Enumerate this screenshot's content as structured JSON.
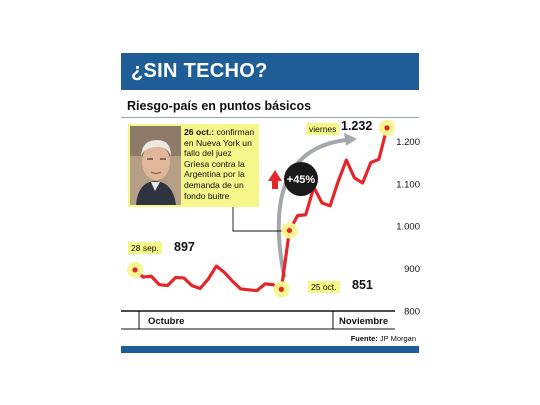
{
  "header": {
    "title": "¿SIN TECHO?"
  },
  "chart_data": {
    "type": "line",
    "title": "",
    "subtitle": "Riesgo-país en puntos básicos",
    "xlabel": "",
    "ylabel": "",
    "yticks": [
      800,
      900,
      1000,
      1100,
      1200
    ],
    "ylim": [
      800,
      1260
    ],
    "x_labels": [
      "Octubre",
      "Noviembre"
    ],
    "grid": false,
    "series": [
      {
        "color": "#e3262a",
        "values": [
          897,
          880,
          882,
          862,
          860,
          879,
          878,
          860,
          853,
          875,
          906,
          891,
          870,
          852,
          850,
          848,
          864,
          862,
          851,
          990,
          1025,
          1027,
          1092,
          1055,
          1048,
          1106,
          1156,
          1114,
          1102,
          1150,
          1158,
          1232
        ]
      }
    ],
    "highlights": [
      {
        "date_label": "28 sep.",
        "value_label": "897",
        "index": 0
      },
      {
        "date_label": "25 oct.",
        "value_label": "851",
        "index": 18
      },
      {
        "date_label": "",
        "value_label": "",
        "index": 19
      },
      {
        "date_label": "viernes",
        "value_label": "1.232",
        "index": 31
      }
    ],
    "change_badge": "+45%",
    "annotation": {
      "date": "26 oct.:",
      "text": " confirman en Nueva York un fallo del juez Griesa contra la Argentina por la demanda de un fondo buitre"
    }
  },
  "footer": {
    "source_label": "Fuente:",
    "source_value": " JP Morgan"
  },
  "colors": {
    "banner": "#1f5d96",
    "line": "#e3262a",
    "highlight": "#f6f78a",
    "badge": "#1a1a1a"
  }
}
